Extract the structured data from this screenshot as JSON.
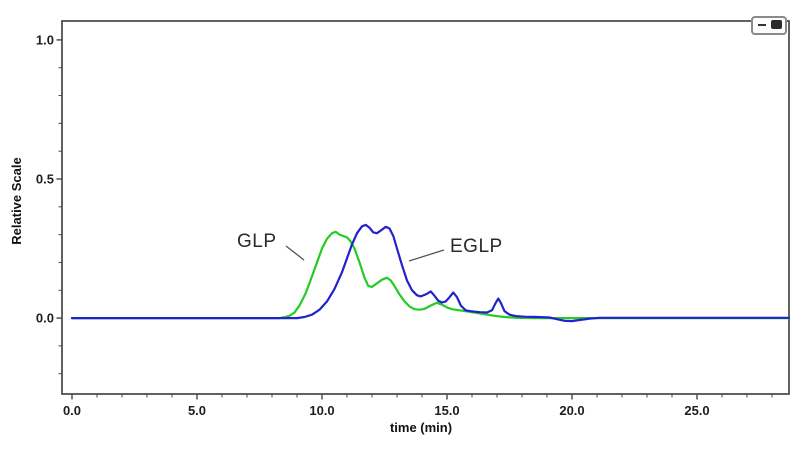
{
  "chart_data": {
    "type": "line",
    "title": "",
    "xlabel": "time (min)",
    "ylabel": "Relative Scale",
    "xlim": [
      -0.4,
      28.68
    ],
    "ylim": [
      -0.273,
      1.068
    ],
    "grid": false,
    "legend": "none",
    "x_ticks": {
      "major": [
        0,
        5,
        10,
        15,
        20,
        25
      ],
      "labels": [
        "0.0",
        "5.0",
        "10.0",
        "15.0",
        "20.0",
        "25.0"
      ],
      "minor_step": 1,
      "minor_range": [
        0,
        28
      ]
    },
    "y_ticks": {
      "major": [
        0,
        0.5,
        1
      ],
      "labels": [
        "0.0",
        "0.5",
        "1.0"
      ],
      "minor_step": 0.1,
      "minor_range": [
        -0.2,
        1.0
      ]
    },
    "colors": {
      "axis": "#474747",
      "tick_label": "#1e1e1e",
      "glp": "#22cc22",
      "eglp": "#2222cc",
      "annotation": "#2a2a2a"
    },
    "series": [
      {
        "name": "GLP",
        "color": "#22cc22",
        "points": [
          [
            0,
            0
          ],
          [
            8.3,
            0
          ],
          [
            8.5,
            0.003
          ],
          [
            8.7,
            0.008
          ],
          [
            8.9,
            0.02
          ],
          [
            9.1,
            0.045
          ],
          [
            9.35,
            0.09
          ],
          [
            9.6,
            0.15
          ],
          [
            9.8,
            0.2
          ],
          [
            10.0,
            0.25
          ],
          [
            10.2,
            0.285
          ],
          [
            10.4,
            0.305
          ],
          [
            10.55,
            0.31
          ],
          [
            10.7,
            0.3
          ],
          [
            10.85,
            0.295
          ],
          [
            11.0,
            0.29
          ],
          [
            11.15,
            0.275
          ],
          [
            11.3,
            0.25
          ],
          [
            11.5,
            0.2
          ],
          [
            11.7,
            0.145
          ],
          [
            11.85,
            0.115
          ],
          [
            12.0,
            0.112
          ],
          [
            12.2,
            0.125
          ],
          [
            12.4,
            0.138
          ],
          [
            12.6,
            0.145
          ],
          [
            12.75,
            0.135
          ],
          [
            12.9,
            0.115
          ],
          [
            13.1,
            0.085
          ],
          [
            13.3,
            0.06
          ],
          [
            13.5,
            0.042
          ],
          [
            13.7,
            0.032
          ],
          [
            13.9,
            0.03
          ],
          [
            14.1,
            0.033
          ],
          [
            14.35,
            0.045
          ],
          [
            14.6,
            0.055
          ],
          [
            14.8,
            0.048
          ],
          [
            15.0,
            0.038
          ],
          [
            15.2,
            0.032
          ],
          [
            15.5,
            0.028
          ],
          [
            15.8,
            0.024
          ],
          [
            16.1,
            0.02
          ],
          [
            16.5,
            0.014
          ],
          [
            16.9,
            0.008
          ],
          [
            17.3,
            0.004
          ],
          [
            17.8,
            0.001
          ],
          [
            18.5,
            0
          ],
          [
            28.68,
            0
          ]
        ]
      },
      {
        "name": "EGLP",
        "color": "#2222cc",
        "points": [
          [
            0,
            0
          ],
          [
            9.0,
            0
          ],
          [
            9.3,
            0.004
          ],
          [
            9.6,
            0.012
          ],
          [
            9.9,
            0.03
          ],
          [
            10.2,
            0.06
          ],
          [
            10.5,
            0.105
          ],
          [
            10.8,
            0.165
          ],
          [
            11.0,
            0.215
          ],
          [
            11.2,
            0.265
          ],
          [
            11.4,
            0.305
          ],
          [
            11.6,
            0.33
          ],
          [
            11.75,
            0.335
          ],
          [
            11.9,
            0.325
          ],
          [
            12.05,
            0.308
          ],
          [
            12.2,
            0.305
          ],
          [
            12.4,
            0.318
          ],
          [
            12.55,
            0.328
          ],
          [
            12.7,
            0.322
          ],
          [
            12.85,
            0.295
          ],
          [
            13.0,
            0.25
          ],
          [
            13.2,
            0.19
          ],
          [
            13.4,
            0.135
          ],
          [
            13.6,
            0.1
          ],
          [
            13.8,
            0.082
          ],
          [
            13.95,
            0.078
          ],
          [
            14.15,
            0.085
          ],
          [
            14.35,
            0.096
          ],
          [
            14.5,
            0.08
          ],
          [
            14.65,
            0.062
          ],
          [
            14.8,
            0.056
          ],
          [
            14.95,
            0.06
          ],
          [
            15.1,
            0.075
          ],
          [
            15.25,
            0.092
          ],
          [
            15.4,
            0.075
          ],
          [
            15.55,
            0.045
          ],
          [
            15.75,
            0.028
          ],
          [
            16.0,
            0.024
          ],
          [
            16.3,
            0.021
          ],
          [
            16.6,
            0.02
          ],
          [
            16.8,
            0.028
          ],
          [
            16.95,
            0.055
          ],
          [
            17.05,
            0.07
          ],
          [
            17.15,
            0.055
          ],
          [
            17.3,
            0.025
          ],
          [
            17.5,
            0.012
          ],
          [
            17.75,
            0.007
          ],
          [
            18.1,
            0.005
          ],
          [
            18.6,
            0.004
          ],
          [
            19.1,
            0.002
          ],
          [
            19.4,
            -0.004
          ],
          [
            19.7,
            -0.01
          ],
          [
            20.0,
            -0.011
          ],
          [
            20.3,
            -0.007
          ],
          [
            20.7,
            -0.002
          ],
          [
            21.1,
            0.001
          ],
          [
            22.0,
            0.001
          ],
          [
            28.68,
            0.001
          ]
        ]
      }
    ],
    "annotations": [
      {
        "text": "GLP",
        "pointer": [
          [
            286,
            246
          ],
          [
            304,
            260
          ]
        ]
      },
      {
        "text": "EGLP",
        "pointer": [
          [
            444,
            250
          ],
          [
            409,
            261
          ]
        ]
      }
    ]
  },
  "window_control": {
    "name": "plot-window-control"
  }
}
